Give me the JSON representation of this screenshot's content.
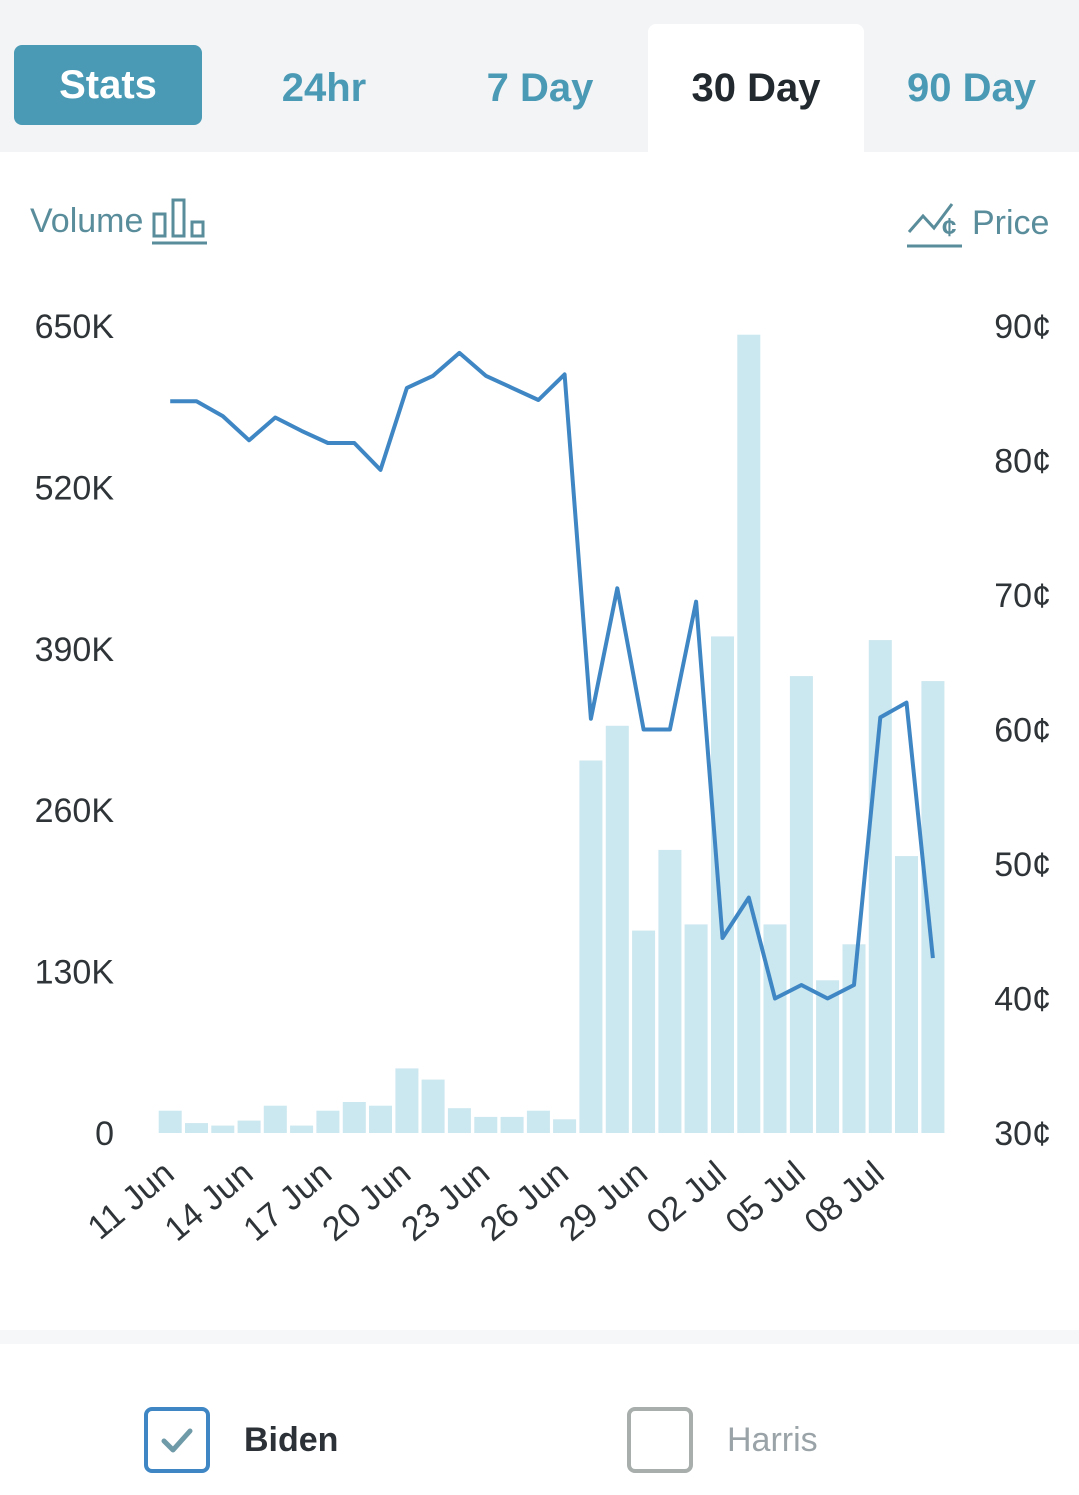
{
  "tabs": {
    "stats": "Stats",
    "h24": "24hr",
    "d7": "7 Day",
    "d30": "30 Day",
    "d90": "90 Day",
    "active": "30 Day"
  },
  "legend": {
    "volume": "Volume",
    "price": "Price"
  },
  "series_toggles": [
    {
      "name": "Biden",
      "checked": true
    },
    {
      "name": "Harris",
      "checked": false
    }
  ],
  "colors": {
    "accent": "#4a9ab5",
    "line": "#3f87c4",
    "bar": "#cbe7ef"
  },
  "chart_data": {
    "type": "bar",
    "title": "",
    "categories": [
      "11 Jun",
      "12 Jun",
      "13 Jun",
      "14 Jun",
      "15 Jun",
      "16 Jun",
      "17 Jun",
      "18 Jun",
      "19 Jun",
      "20 Jun",
      "21 Jun",
      "22 Jun",
      "23 Jun",
      "24 Jun",
      "25 Jun",
      "26 Jun",
      "27 Jun",
      "28 Jun",
      "29 Jun",
      "30 Jun",
      "01 Jul",
      "02 Jul",
      "03 Jul",
      "04 Jul",
      "05 Jul",
      "06 Jul",
      "07 Jul",
      "08 Jul",
      "09 Jul",
      "10 Jul"
    ],
    "x_tick_labels": [
      "11 Jun",
      "14 Jun",
      "17 Jun",
      "20 Jun",
      "23 Jun",
      "26 Jun",
      "29 Jun",
      "02 Jul",
      "05 Jul",
      "08 Jul"
    ],
    "series": [
      {
        "name": "Volume",
        "type": "bar",
        "axis": "left",
        "values": [
          18000,
          8000,
          6000,
          10000,
          22000,
          6000,
          18000,
          25000,
          22000,
          52000,
          43000,
          20000,
          13000,
          13000,
          18000,
          11000,
          300000,
          328000,
          163000,
          228000,
          168000,
          400000,
          643000,
          168000,
          368000,
          123000,
          152000,
          397000,
          223000,
          364000
        ]
      },
      {
        "name": "Price",
        "type": "line",
        "axis": "right",
        "values": [
          84.4,
          84.4,
          83.3,
          81.5,
          83.2,
          82.2,
          81.3,
          81.3,
          79.3,
          85.4,
          86.3,
          88.0,
          86.3,
          85.4,
          84.5,
          86.4,
          60.8,
          70.5,
          60.0,
          60.0,
          69.5,
          44.5,
          47.5,
          40.0,
          41.0,
          40.0,
          41.0,
          60.9,
          62.0,
          43.0
        ]
      }
    ],
    "y_left": {
      "label": "Volume",
      "ticks": [
        "0",
        "130K",
        "260K",
        "390K",
        "520K",
        "650K"
      ],
      "range": [
        0,
        650000
      ]
    },
    "y_right": {
      "label": "Price",
      "ticks": [
        "30¢",
        "40¢",
        "50¢",
        "60¢",
        "70¢",
        "80¢",
        "90¢"
      ],
      "range": [
        30,
        90
      ]
    },
    "grid": false
  }
}
